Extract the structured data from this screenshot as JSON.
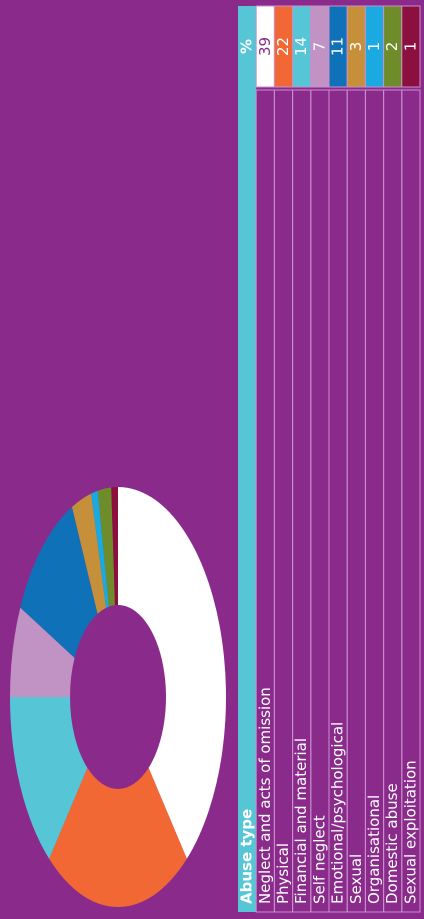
{
  "chart_data": {
    "type": "pie",
    "donut": true,
    "columns": [
      "Abuse type",
      "%"
    ],
    "categories": [
      "Neglect and acts of omission",
      "Physical",
      "Financial and material",
      "Self neglect",
      "Emotional/psychological",
      "Sexual",
      "Organisational",
      "Domestic abuse",
      "Sexual exploitation"
    ],
    "values": [
      39,
      22,
      14,
      7,
      11,
      3,
      1,
      2,
      1
    ],
    "colors": [
      "#ffffff",
      "#f26835",
      "#56c5d6",
      "#c192c4",
      "#0f71b8",
      "#c6903a",
      "#1aa9e0",
      "#6f8c2a",
      "#8b1040"
    ]
  }
}
